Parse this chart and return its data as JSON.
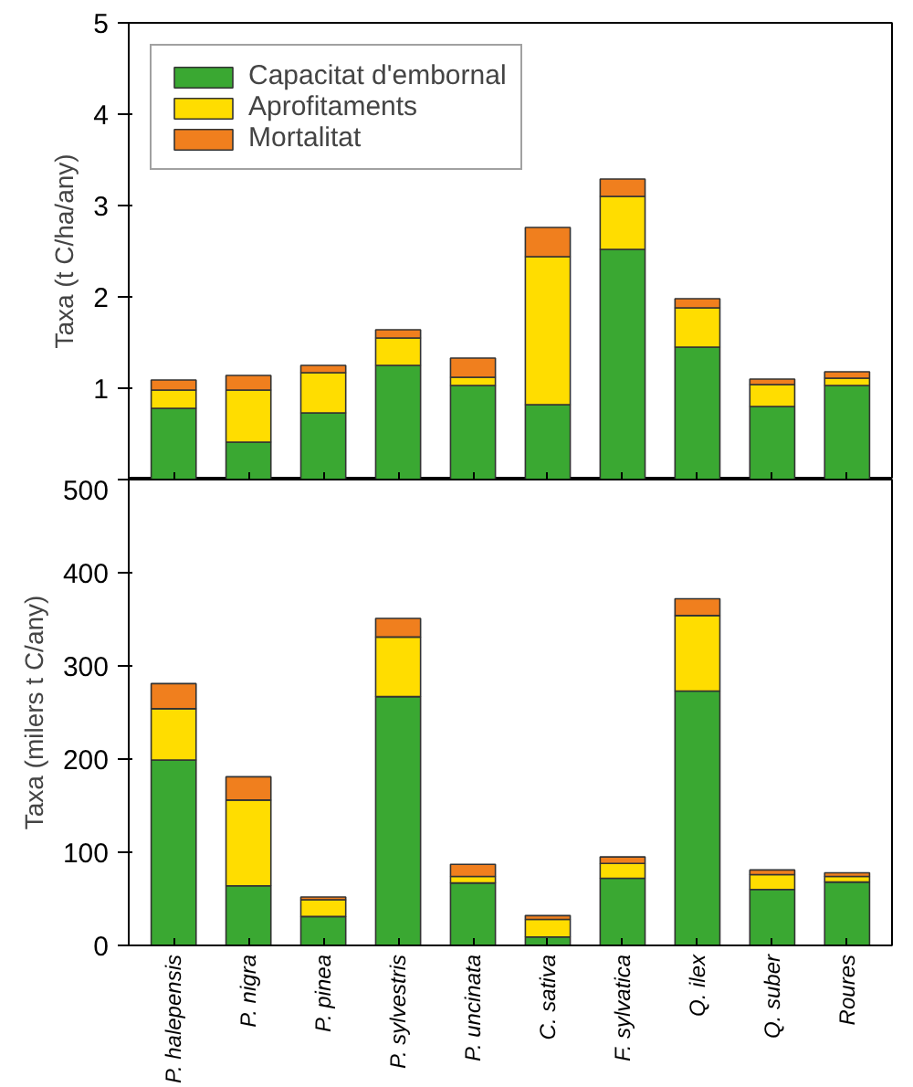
{
  "chart_data": [
    {
      "type": "bar",
      "stacked": true,
      "categories": [
        null,
        null,
        null,
        null,
        null,
        null,
        null,
        null,
        null,
        null
      ],
      "ylabel": "Taxa (t C/ha/any)",
      "ylim": [
        0,
        5
      ],
      "yticks": [
        1,
        2,
        3,
        4,
        5
      ],
      "tick_labels": "y",
      "legend": "top left",
      "grid": false,
      "series": [
        {
          "name": "Capacitat d'embornal",
          "color": "#3aa832",
          "values": [
            0.78,
            0.41,
            0.73,
            1.25,
            1.03,
            0.82,
            2.52,
            1.45,
            0.8,
            1.03
          ]
        },
        {
          "name": "Aprofitaments",
          "color": "#ffdd00",
          "values": [
            0.2,
            0.57,
            0.44,
            0.3,
            0.09,
            1.62,
            0.58,
            0.43,
            0.24,
            0.08
          ]
        },
        {
          "name": "Mortalitat",
          "color": "#f07f1e",
          "values": [
            0.11,
            0.16,
            0.08,
            0.09,
            0.21,
            0.32,
            0.19,
            0.1,
            0.06,
            0.07
          ]
        }
      ]
    },
    {
      "type": "bar",
      "stacked": true,
      "categories": [
        "P. halepensis",
        "P. nigra",
        "P. pinea",
        "P. sylvestris",
        "P. uncinata",
        "C. sativa",
        "F. sylvatica",
        "Q. ilex",
        "Q. suber",
        "Roures"
      ],
      "ylabel": "Taxa (milers t C/any)",
      "ylim": [
        0,
        500
      ],
      "yticks": [
        0,
        100,
        200,
        300,
        400,
        500
      ],
      "grid": false,
      "series": [
        {
          "color": "#3aa832",
          "values": [
            199,
            64,
            31,
            267,
            67,
            9,
            72,
            273,
            60,
            68
          ]
        },
        {
          "color": "#ffdd00",
          "values": [
            55,
            92,
            18,
            64,
            7,
            19,
            16,
            81,
            16,
            6
          ]
        },
        {
          "color": "#f07f1e",
          "values": [
            27,
            25,
            3,
            20,
            13,
            4,
            7,
            18,
            5,
            4
          ]
        }
      ]
    }
  ]
}
